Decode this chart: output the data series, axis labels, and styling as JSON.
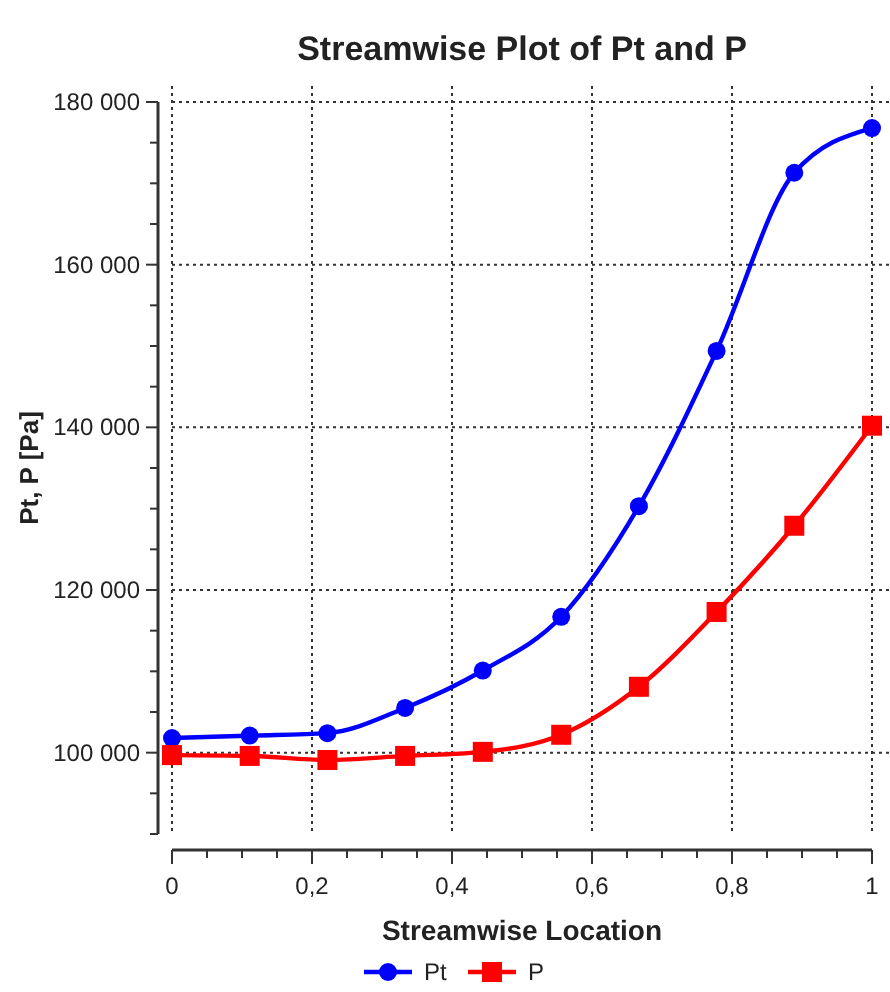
{
  "chart_data": {
    "type": "line",
    "title": "Streamwise Plot of Pt and P",
    "xlabel": "Streamwise Location",
    "ylabel": "Pt, P [Pa]",
    "x": [
      0,
      0.111,
      0.222,
      0.333,
      0.444,
      0.556,
      0.667,
      0.778,
      0.889,
      1
    ],
    "series": [
      {
        "name": "Pt",
        "color": "#0000ff",
        "marker": "circle",
        "values": [
          101800,
          102100,
          102400,
          105500,
          110100,
          116700,
          130300,
          149400,
          171300,
          176800
        ]
      },
      {
        "name": "P",
        "color": "#ff0000",
        "marker": "square",
        "values": [
          99700,
          99600,
          99100,
          99600,
          100100,
          102200,
          108100,
          117300,
          127900,
          140200
        ]
      }
    ],
    "xlim": [
      0,
      1
    ],
    "xticks": [
      {
        "value": 0,
        "label": "0"
      },
      {
        "value": 0.05,
        "label": null
      },
      {
        "value": 0.1,
        "label": null
      },
      {
        "value": 0.15,
        "label": null
      },
      {
        "value": 0.2,
        "label": "0,2"
      },
      {
        "value": 0.25,
        "label": null
      },
      {
        "value": 0.3,
        "label": null
      },
      {
        "value": 0.35,
        "label": null
      },
      {
        "value": 0.4,
        "label": "0,4"
      },
      {
        "value": 0.45,
        "label": null
      },
      {
        "value": 0.5,
        "label": null
      },
      {
        "value": 0.55,
        "label": null
      },
      {
        "value": 0.6,
        "label": "0,6"
      },
      {
        "value": 0.65,
        "label": null
      },
      {
        "value": 0.7,
        "label": null
      },
      {
        "value": 0.75,
        "label": null
      },
      {
        "value": 0.8,
        "label": "0,8"
      },
      {
        "value": 0.85,
        "label": null
      },
      {
        "value": 0.9,
        "label": null
      },
      {
        "value": 0.95,
        "label": null
      },
      {
        "value": 1,
        "label": "1"
      }
    ],
    "ylim": [
      90000,
      180000
    ],
    "yticks": [
      {
        "value": 90000,
        "label": null
      },
      {
        "value": 95000,
        "label": null
      },
      {
        "value": 100000,
        "label": "100 000"
      },
      {
        "value": 105000,
        "label": null
      },
      {
        "value": 110000,
        "label": null
      },
      {
        "value": 115000,
        "label": null
      },
      {
        "value": 120000,
        "label": "120 000"
      },
      {
        "value": 125000,
        "label": null
      },
      {
        "value": 130000,
        "label": null
      },
      {
        "value": 135000,
        "label": null
      },
      {
        "value": 140000,
        "label": "140 000"
      },
      {
        "value": 145000,
        "label": null
      },
      {
        "value": 150000,
        "label": null
      },
      {
        "value": 155000,
        "label": null
      },
      {
        "value": 160000,
        "label": "160 000"
      },
      {
        "value": 165000,
        "label": null
      },
      {
        "value": 170000,
        "label": null
      },
      {
        "value": 175000,
        "label": null
      },
      {
        "value": 180000,
        "label": "180 000"
      }
    ],
    "grid": true,
    "legend": "bottom",
    "line_style": "solid"
  }
}
